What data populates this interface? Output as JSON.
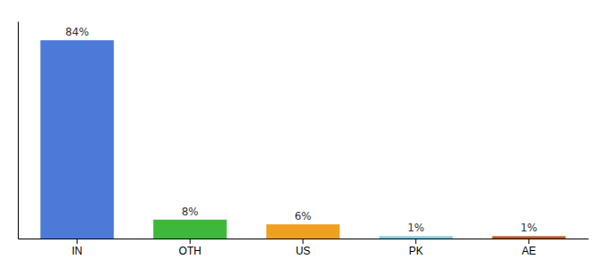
{
  "chart_data": {
    "type": "bar",
    "categories": [
      "IN",
      "OTH",
      "US",
      "PK",
      "AE"
    ],
    "values": [
      84,
      8,
      6,
      1,
      1
    ],
    "colors": [
      "#4d79d9",
      "#3db83a",
      "#f0a020",
      "#82cce8",
      "#c05820"
    ],
    "value_labels": [
      "84%",
      "8%",
      "6%",
      "1%",
      "1%"
    ],
    "data_labels": true,
    "ylim": [
      0,
      92
    ],
    "tick_labels": "x",
    "grid": false
  }
}
